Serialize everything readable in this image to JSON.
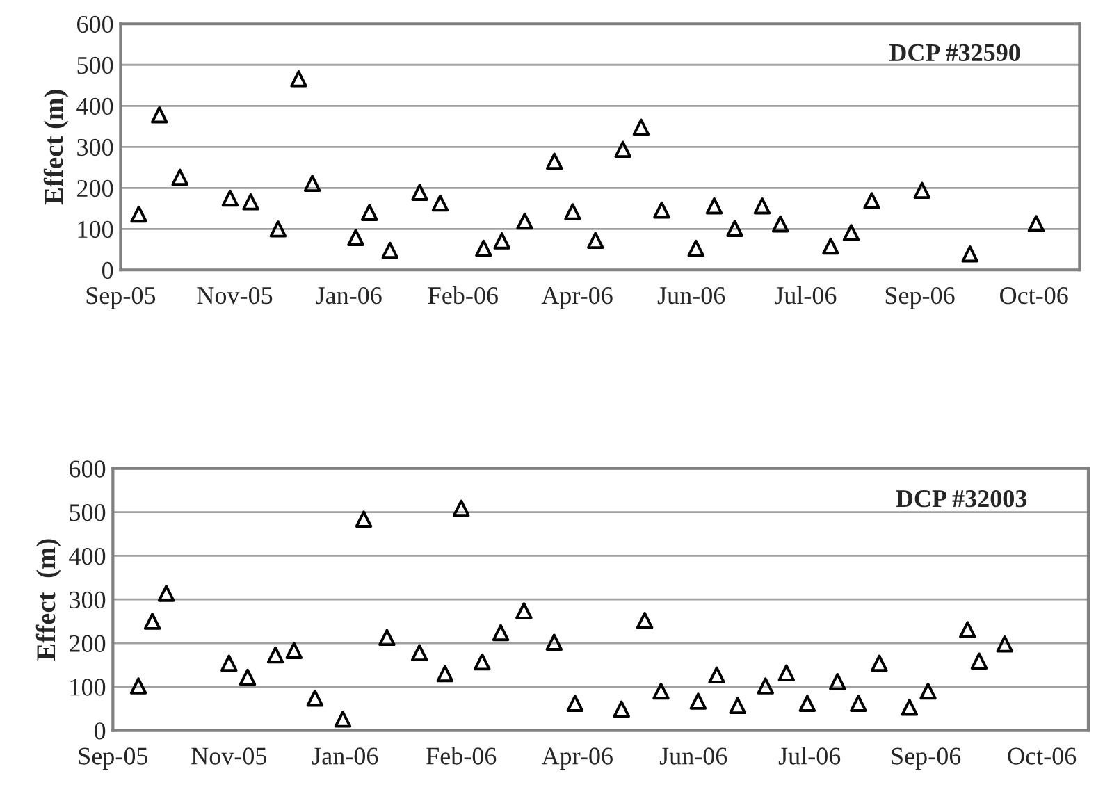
{
  "chart_data": [
    {
      "type": "scatter",
      "ylabel": "Effect (m)",
      "annotations": [
        "DCP #32590"
      ],
      "x": [
        "2005-10-03",
        "2005-10-12",
        "2005-10-21",
        "2005-11-12",
        "2005-11-21",
        "2005-12-03",
        "2005-12-12",
        "2005-12-18",
        "2006-01-06",
        "2006-01-12",
        "2006-01-21",
        "2006-02-03",
        "2006-02-12",
        "2006-03-03",
        "2006-03-11",
        "2006-03-21",
        "2006-04-03",
        "2006-04-11",
        "2006-04-21",
        "2006-05-03",
        "2006-05-11",
        "2006-05-20",
        "2006-06-04",
        "2006-06-12",
        "2006-06-21",
        "2006-07-03",
        "2006-07-11",
        "2006-08-02",
        "2006-08-11",
        "2006-08-20",
        "2006-09-11",
        "2006-10-02",
        "2006-10-31"
      ],
      "values": [
        136,
        378,
        226,
        175,
        166,
        100,
        466,
        211,
        79,
        140,
        48,
        189,
        163,
        53,
        71,
        119,
        265,
        142,
        72,
        294,
        348,
        146,
        53,
        156,
        101,
        156,
        112,
        58,
        91,
        169,
        194,
        39,
        113
      ],
      "color": "#000000",
      "marker": "triangle",
      "grid": "y",
      "xlim": [
        "2005-09-25",
        "2006-11-19"
      ],
      "xticks": [
        {
          "value": "2005-09-25",
          "label": "Sep-05"
        },
        {
          "value": "2005-11-14",
          "label": "Nov-05"
        },
        {
          "value": "2006-01-03",
          "label": "Jan-06"
        },
        {
          "value": "2006-02-22",
          "label": "Feb-06"
        },
        {
          "value": "2006-04-13",
          "label": "Apr-06"
        },
        {
          "value": "2006-06-02",
          "label": "Jun-06"
        },
        {
          "value": "2006-07-22",
          "label": "Jul-06"
        },
        {
          "value": "2006-09-10",
          "label": "Sep-06"
        },
        {
          "value": "2006-10-30",
          "label": "Oct-06"
        }
      ],
      "ylim": [
        0,
        600
      ],
      "yticks": [
        0,
        100,
        200,
        300,
        400,
        500,
        600
      ]
    },
    {
      "type": "scatter",
      "ylabel": "Effect  (m)",
      "annotations": [
        "DCP #32003"
      ],
      "x": [
        "2005-10-06",
        "2005-10-12",
        "2005-10-18",
        "2005-11-14",
        "2005-11-22",
        "2005-12-04",
        "2005-12-12",
        "2005-12-21",
        "2006-01-02",
        "2006-01-11",
        "2006-01-21",
        "2006-02-04",
        "2006-02-15",
        "2006-02-22",
        "2006-03-03",
        "2006-03-11",
        "2006-03-21",
        "2006-04-03",
        "2006-04-12",
        "2006-05-02",
        "2006-05-12",
        "2006-05-19",
        "2006-06-04",
        "2006-06-12",
        "2006-06-21",
        "2006-07-03",
        "2006-07-12",
        "2006-07-21",
        "2006-08-03",
        "2006-08-12",
        "2006-08-21",
        "2006-09-03",
        "2006-09-11",
        "2006-09-28",
        "2006-10-03",
        "2006-10-14"
      ],
      "values": [
        102,
        250,
        314,
        154,
        122,
        173,
        183,
        74,
        26,
        484,
        213,
        178,
        130,
        509,
        157,
        224,
        274,
        202,
        62,
        49,
        252,
        90,
        67,
        127,
        57,
        102,
        132,
        62,
        112,
        62,
        154,
        53,
        90,
        231,
        159,
        198
      ],
      "color": "#000000",
      "marker": "triangle",
      "grid": "y",
      "xlim": [
        "2005-09-25",
        "2006-11-19"
      ],
      "xticks": [
        {
          "value": "2005-09-25",
          "label": "Sep-05"
        },
        {
          "value": "2005-11-14",
          "label": "Nov-05"
        },
        {
          "value": "2006-01-03",
          "label": "Jan-06"
        },
        {
          "value": "2006-02-22",
          "label": "Feb-06"
        },
        {
          "value": "2006-04-13",
          "label": "Apr-06"
        },
        {
          "value": "2006-06-02",
          "label": "Jun-06"
        },
        {
          "value": "2006-07-22",
          "label": "Jul-06"
        },
        {
          "value": "2006-09-10",
          "label": "Sep-06"
        },
        {
          "value": "2006-10-30",
          "label": "Oct-06"
        }
      ],
      "ylim": [
        0,
        600
      ],
      "yticks": [
        0,
        100,
        200,
        300,
        400,
        500,
        600
      ]
    }
  ]
}
